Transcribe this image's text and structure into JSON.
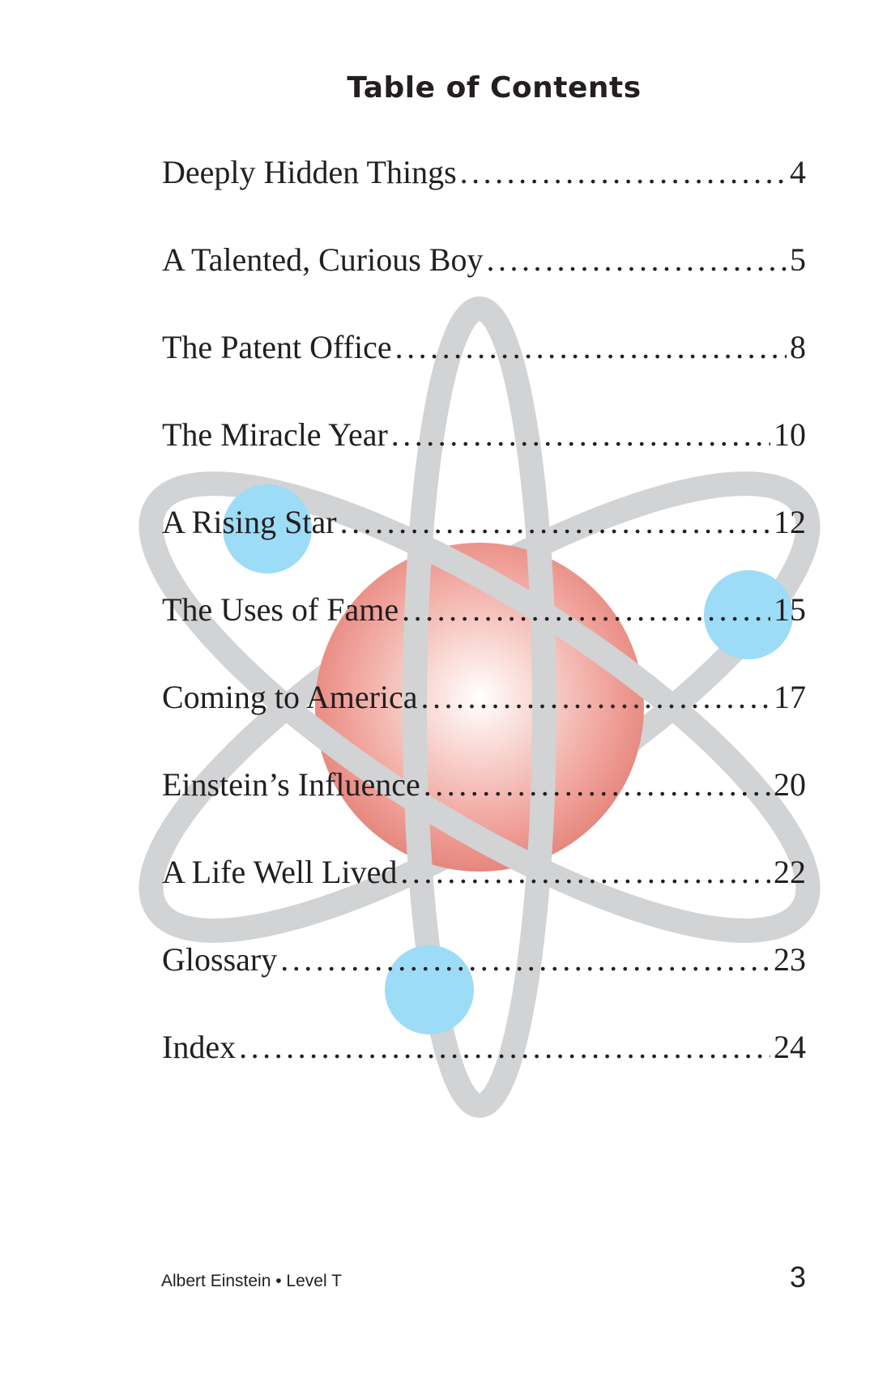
{
  "title": "Table of Contents",
  "entries": [
    {
      "label": "Deeply Hidden Things",
      "page": "4"
    },
    {
      "label": "A Talented, Curious Boy",
      "page": "5"
    },
    {
      "label": "The Patent Office",
      "page": "8"
    },
    {
      "label": "The Miracle Year",
      "page": "10"
    },
    {
      "label": "A Rising Star",
      "page": "12"
    },
    {
      "label": "The Uses of Fame",
      "page": "15"
    },
    {
      "label": "Coming to America",
      "page": "17"
    },
    {
      "label": "Einstein’s Influence",
      "page": "20"
    },
    {
      "label": "A Life Well Lived",
      "page": "22"
    },
    {
      "label": "Glossary",
      "page": "23"
    },
    {
      "label": "Index",
      "page": "24"
    }
  ],
  "footer": {
    "book": "Albert Einstein • Level T",
    "page_number": "3"
  },
  "illustration": {
    "name": "atom-illustration",
    "orbit_color": "#d1d3d4",
    "nucleus_color": "#e8847d",
    "electron_color": "#9ddcf6"
  }
}
